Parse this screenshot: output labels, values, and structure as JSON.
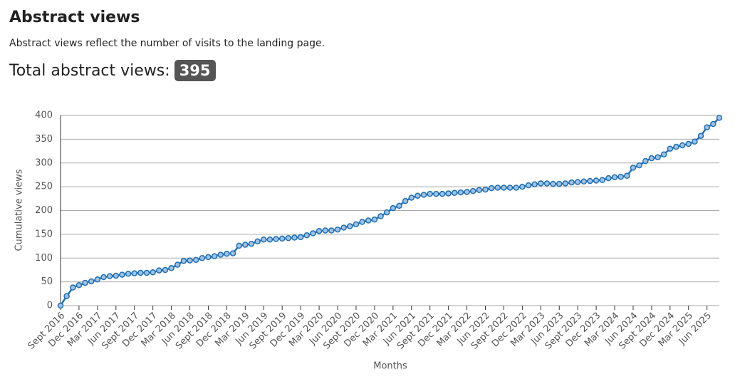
{
  "header": {
    "title": "Abstract views",
    "description": "Abstract views reflect the number of visits to the landing page.",
    "total_label": "Total abstract views:",
    "total_value": 395
  },
  "chart_data": {
    "type": "line",
    "y_label": "Cumulative views",
    "x_label": "Months",
    "color": "#1f6fb5",
    "grid": true,
    "ylim": [
      0,
      400
    ],
    "yticks": [
      0,
      50,
      100,
      150,
      200,
      250,
      300,
      350,
      400
    ],
    "categories": [
      "Sept 2016",
      null,
      null,
      "Dec 2016",
      null,
      null,
      "Mar 2017",
      null,
      null,
      "Jun 2017",
      null,
      null,
      "Sept 2017",
      null,
      null,
      "Dec 2017",
      null,
      null,
      "Mar 2018",
      null,
      null,
      "Jun 2018",
      null,
      null,
      "Sept 2018",
      null,
      null,
      "Dec 2018",
      null,
      null,
      "Mar 2019",
      null,
      null,
      "Jun 2019",
      null,
      null,
      "Sept 2019",
      null,
      null,
      "Dec 2019",
      null,
      null,
      "Mar 2020",
      null,
      null,
      "Jun 2020",
      null,
      null,
      "Sept 2020",
      null,
      null,
      "Dec 2020",
      null,
      null,
      "Mar 2021",
      null,
      null,
      "Jun 2021",
      null,
      null,
      "Sept 2021",
      null,
      null,
      "Dec 2021",
      null,
      null,
      "Mar 2022",
      null,
      null,
      "Jun 2022",
      null,
      null,
      "Sept 2022",
      null,
      null,
      "Dec 2022",
      null,
      null,
      "Mar 2023",
      null,
      null,
      "Jun 2023",
      null,
      null,
      "Sept 2023",
      null,
      null,
      "Dec 2023",
      null,
      null,
      "Mar 2024",
      null,
      null,
      "Jun 2024",
      null,
      null,
      "Sept 2024",
      null,
      null,
      "Dec 2024",
      null,
      null,
      "Mar 2025",
      null,
      null,
      "Jun 2025",
      null,
      null
    ],
    "values": [
      0,
      20,
      38,
      43,
      48,
      51,
      55,
      60,
      62,
      63,
      65,
      67,
      68,
      69,
      69,
      70,
      74,
      75,
      79,
      86,
      94,
      95,
      96,
      100,
      102,
      104,
      107,
      109,
      110,
      126,
      128,
      130,
      135,
      139,
      139,
      140,
      141,
      142,
      143,
      144,
      148,
      152,
      157,
      158,
      158,
      160,
      164,
      167,
      171,
      176,
      179,
      181,
      188,
      196,
      205,
      210,
      220,
      227,
      231,
      233,
      235,
      235,
      235,
      236,
      237,
      238,
      239,
      241,
      243,
      244,
      247,
      248,
      248,
      248,
      248,
      250,
      253,
      255,
      257,
      257,
      256,
      256,
      257,
      259,
      260,
      261,
      262,
      263,
      264,
      268,
      270,
      271,
      273,
      290,
      295,
      304,
      310,
      312,
      318,
      330,
      334,
      337,
      340,
      345,
      357,
      375,
      382,
      395
    ]
  }
}
